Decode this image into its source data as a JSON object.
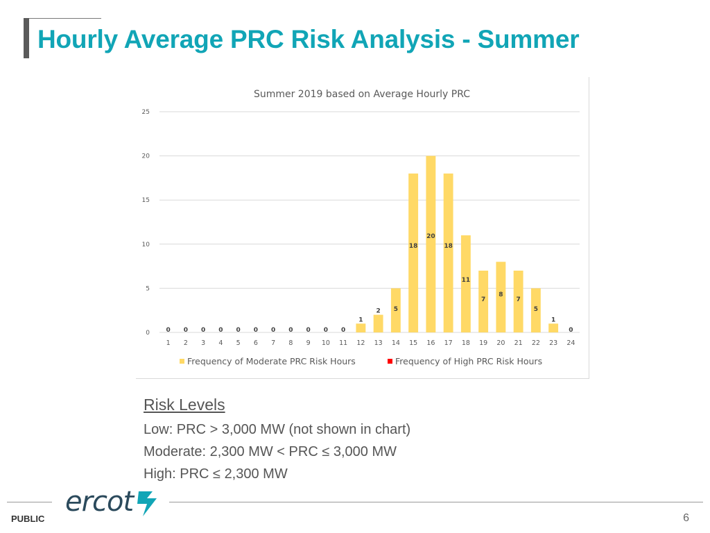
{
  "slide": {
    "title": "Hourly Average PRC Risk Analysis - Summer",
    "footer_label": "PUBLIC",
    "page_number": "6",
    "logo_text": "ercot",
    "accent_color": "#11a5b6"
  },
  "risk_levels": {
    "heading": "Risk Levels",
    "lines": [
      "Low: PRC > 3,000 MW (not shown in chart)",
      "Moderate: 2,300 MW < PRC ≤ 3,000 MW",
      "High: PRC ≤ 2,300 MW"
    ]
  },
  "chart_data": {
    "type": "bar",
    "title": "Summer 2019 based on Average Hourly PRC",
    "xlabel": "",
    "ylabel": "",
    "ylim": [
      0,
      25
    ],
    "yticks": [
      0,
      5,
      10,
      15,
      20,
      25
    ],
    "grid": true,
    "legend_position": "bottom",
    "categories": [
      "1",
      "2",
      "3",
      "4",
      "5",
      "6",
      "7",
      "8",
      "9",
      "10",
      "11",
      "12",
      "13",
      "14",
      "15",
      "16",
      "17",
      "18",
      "19",
      "20",
      "21",
      "22",
      "23",
      "24"
    ],
    "series": [
      {
        "name": "Frequency of Moderate PRC Risk Hours",
        "color": "#ffd966",
        "values": [
          0,
          0,
          0,
          0,
          0,
          0,
          0,
          0,
          0,
          0,
          0,
          1,
          2,
          5,
          18,
          20,
          18,
          11,
          7,
          8,
          7,
          5,
          1,
          0
        ]
      },
      {
        "name": "Frequency of High PRC Risk Hours",
        "color": "#ff0000",
        "values": [
          0,
          0,
          0,
          0,
          0,
          0,
          0,
          0,
          0,
          0,
          0,
          0,
          0,
          0,
          0,
          0,
          0,
          0,
          0,
          0,
          0,
          0,
          0,
          0
        ]
      }
    ]
  }
}
